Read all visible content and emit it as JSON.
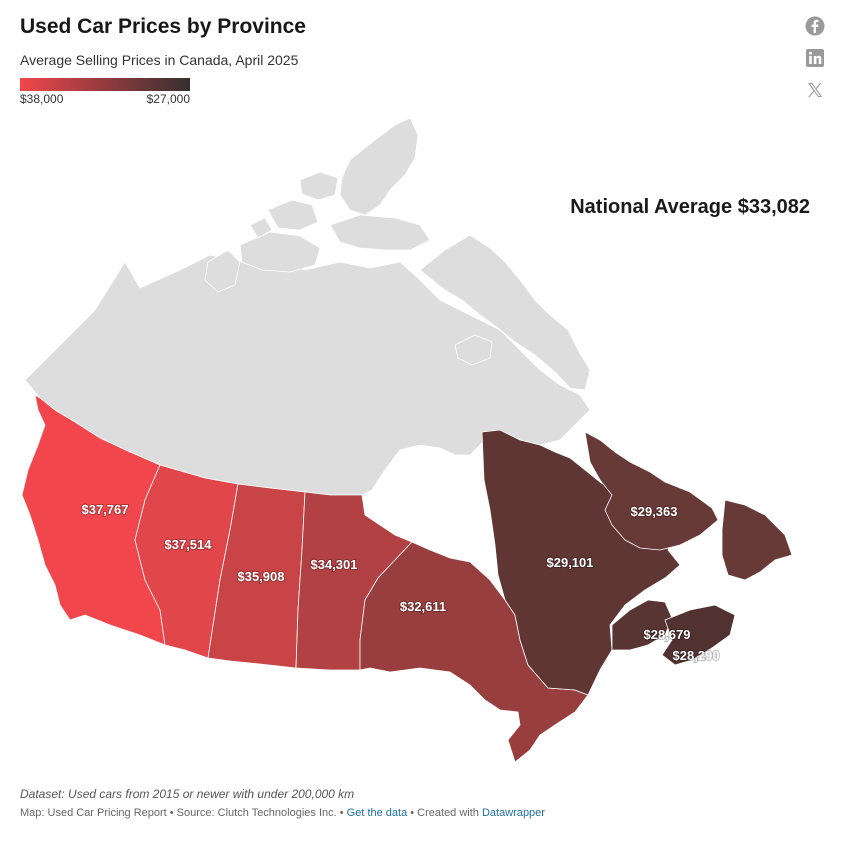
{
  "header": {
    "title": "Used Car Prices by Province",
    "subtitle": "Average Selling Prices in Canada, April 2025"
  },
  "legend": {
    "min_label": "$38,000",
    "max_label": "$27,000",
    "color_start": "#f0464c",
    "color_end": "#353030"
  },
  "annotation": {
    "national_average": "National Average $33,082"
  },
  "map_data": {
    "provinces": [
      {
        "id": "bc",
        "label": "$37,767",
        "value": 37767,
        "color": "#f0464c"
      },
      {
        "id": "ab",
        "label": "$37,514",
        "value": 37514,
        "color": "#e1464b"
      },
      {
        "id": "sk",
        "label": "$35,908",
        "value": 35908,
        "color": "#c94447"
      },
      {
        "id": "mb",
        "label": "$34,301",
        "value": 34301,
        "color": "#b14142"
      },
      {
        "id": "on",
        "label": "$32,611",
        "value": 32611,
        "color": "#983e3e"
      },
      {
        "id": "qc",
        "label": "$29,101",
        "value": 29101,
        "color": "#5f3633"
      },
      {
        "id": "nl",
        "label": "$29,363",
        "value": 29363,
        "color": "#683a37"
      },
      {
        "id": "nb",
        "label": "$28,679",
        "value": 28679,
        "color": "#583432"
      },
      {
        "id": "ns",
        "label": "$28,290",
        "value": 28290,
        "color": "#513230"
      }
    ],
    "no_data_color": "#dddddd"
  },
  "social": [
    "facebook-icon",
    "linkedin-icon",
    "x-icon"
  ],
  "footer": {
    "dataset_note": "Dataset: Used cars from 2015 or newer with under 200,000 km",
    "credits_prefix": "Map: Used Car Pricing Report • Source: Clutch Technologies Inc. • ",
    "get_data_link": "Get the data",
    "created_with": " • Created with ",
    "datawrapper_link": "Datawrapper"
  }
}
